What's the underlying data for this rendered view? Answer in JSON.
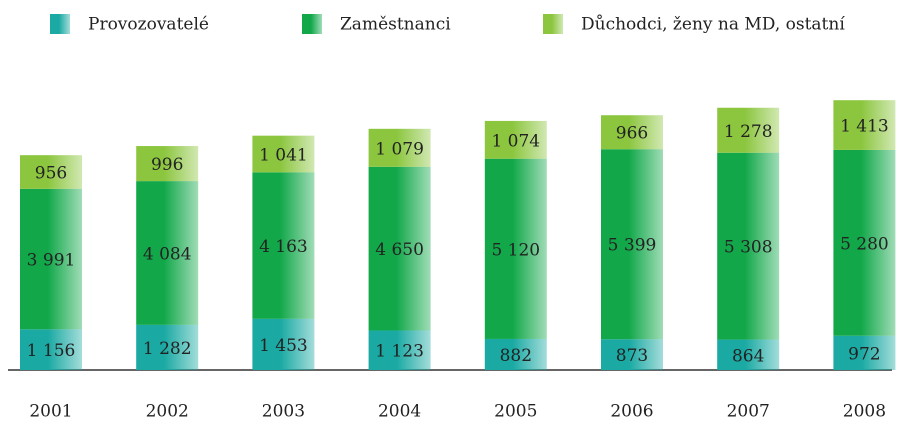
{
  "chart_data": {
    "type": "stacked_bar",
    "categories": [
      "2001",
      "2002",
      "2003",
      "2004",
      "2005",
      "2006",
      "2007",
      "2008"
    ],
    "series": [
      {
        "name": "Provozovatelé",
        "color": "#1aa9a3",
        "values": [
          1156,
          1282,
          1453,
          1123,
          882,
          873,
          864,
          972
        ],
        "value_labels": [
          "1 156",
          "1 282",
          "1 453",
          "1 123",
          "882",
          "873",
          "864",
          "972"
        ]
      },
      {
        "name": "Zaměstnanci",
        "color": "#12a84a",
        "values": [
          3991,
          4084,
          4163,
          4650,
          5120,
          5399,
          5308,
          5280
        ],
        "value_labels": [
          "3 991",
          "4 084",
          "4 163",
          "4 650",
          "5 120",
          "5 399",
          "5 308",
          "5 280"
        ]
      },
      {
        "name": "Důchodci, ženy na MD, ostatní",
        "color": "#8cc63f",
        "values": [
          956,
          996,
          1041,
          1079,
          1074,
          966,
          1278,
          1413
        ],
        "value_labels": [
          "956",
          "996",
          "1 041",
          "1 079",
          "1 074",
          "966",
          "1 278",
          "1 413"
        ]
      }
    ]
  }
}
